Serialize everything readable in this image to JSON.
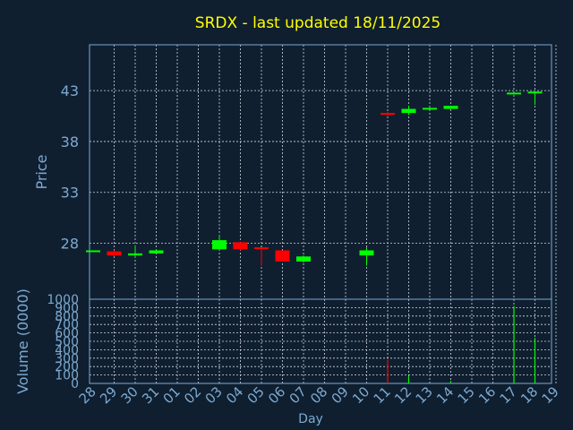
{
  "colors": {
    "background": "#0f1f30",
    "title": "#ffff00",
    "axis": "#7da9d0",
    "up": "#00ff00",
    "down": "#ff0000"
  },
  "chart_data": [
    {
      "type": "candlestick",
      "title": "SRDX - last updated 18/11/2025",
      "ylabel": "Price",
      "xlabel": "",
      "ylim": [
        22.5,
        47.5
      ],
      "y_ticks": [
        "43",
        "38",
        "33",
        "28"
      ],
      "y_tick_values": [
        43,
        38,
        33,
        28
      ],
      "grid": true,
      "day_labels": [
        "28",
        "29",
        "30",
        "31",
        "01",
        "02",
        "03",
        "04",
        "05",
        "06",
        "07",
        "08",
        "09",
        "10",
        "11",
        "12",
        "13",
        "14",
        "15",
        "16",
        "17",
        "18",
        "19"
      ],
      "candles": [
        {
          "day": "28",
          "open": 27.3,
          "close": 27.3,
          "high": 27.3,
          "low": 27.3
        },
        {
          "day": "29",
          "open": 27.2,
          "close": 26.8,
          "high": 27.3,
          "low": 26.7
        },
        {
          "day": "30",
          "open": 26.8,
          "close": 27.0,
          "high": 27.8,
          "low": 26.6
        },
        {
          "day": "31",
          "open": 27.0,
          "close": 27.3,
          "high": 27.4,
          "low": 27.0
        },
        {
          "day": "03",
          "open": 27.4,
          "close": 28.3,
          "high": 28.8,
          "low": 27.3
        },
        {
          "day": "04",
          "open": 28.1,
          "close": 27.4,
          "high": 28.1,
          "low": 27.3
        },
        {
          "day": "05",
          "open": 27.6,
          "close": 27.5,
          "high": 27.6,
          "low": 25.8
        },
        {
          "day": "06",
          "open": 27.3,
          "close": 26.2,
          "high": 27.3,
          "low": 26.2
        },
        {
          "day": "07",
          "open": 26.2,
          "close": 26.7,
          "high": 26.8,
          "low": 26.1
        },
        {
          "day": "10",
          "open": 26.8,
          "close": 27.3,
          "high": 27.6,
          "low": 25.8
        },
        {
          "day": "11",
          "open": 40.8,
          "close": 40.7,
          "high": 40.9,
          "low": 40.5
        },
        {
          "day": "12",
          "open": 40.8,
          "close": 41.2,
          "high": 41.5,
          "low": 40.6
        },
        {
          "day": "13",
          "open": 41.2,
          "close": 41.3,
          "high": 41.4,
          "low": 41.2
        },
        {
          "day": "14",
          "open": 41.2,
          "close": 41.5,
          "high": 41.5,
          "low": 41.2
        },
        {
          "day": "17",
          "open": 42.7,
          "close": 42.8,
          "high": 42.8,
          "low": 42.7
        },
        {
          "day": "18",
          "open": 42.8,
          "close": 42.9,
          "high": 42.9,
          "low": 41.6
        }
      ]
    },
    {
      "type": "bar",
      "ylabel": "Volume (0000)",
      "xlabel": "Day",
      "ylim": [
        0,
        1000
      ],
      "y_ticks": [
        "1000",
        "900",
        "800",
        "700",
        "600",
        "500",
        "400",
        "300",
        "200",
        "100",
        "0"
      ],
      "y_tick_values": [
        1000,
        900,
        800,
        700,
        600,
        500,
        400,
        300,
        200,
        100,
        0
      ],
      "grid": true,
      "bars": [
        {
          "day": "11",
          "value": 280,
          "color": "down"
        },
        {
          "day": "12",
          "value": 90,
          "color": "up"
        },
        {
          "day": "14",
          "value": 30,
          "color": "up"
        },
        {
          "day": "17",
          "value": 920,
          "color": "up"
        },
        {
          "day": "18",
          "value": 540,
          "color": "up"
        }
      ]
    }
  ]
}
